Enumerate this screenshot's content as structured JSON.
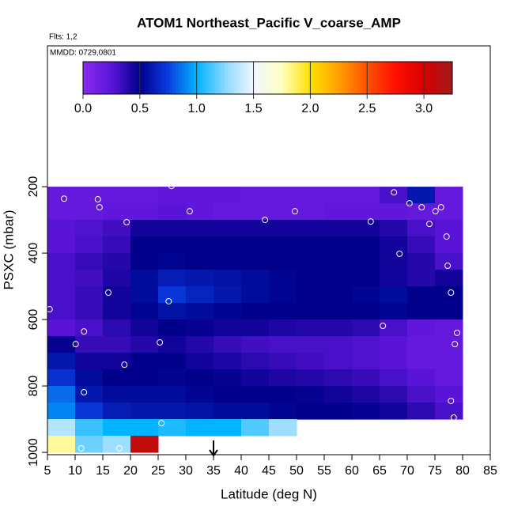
{
  "chart_data": {
    "type": "heatmap",
    "title": "ATOM1 Northeast_Pacific V_coarse_AMP",
    "flights_label": "Flts: 1,2",
    "dates_label": "MMDD: 0729,0801",
    "x_label": "Latitude (deg N)",
    "y_label": "PSXC (mbar)",
    "xlim": [
      5,
      85
    ],
    "xticks": [
      5,
      10,
      15,
      20,
      25,
      30,
      35,
      40,
      45,
      50,
      55,
      60,
      65,
      70,
      75,
      80,
      85
    ],
    "ylim": [
      1007,
      -224
    ],
    "yticks": [
      200,
      400,
      600,
      800,
      1000
    ],
    "lat_edges": [
      5,
      10,
      15,
      20,
      25,
      30,
      35,
      40,
      45,
      50,
      55,
      60,
      65,
      70,
      75,
      80
    ],
    "pressure_edges": [
      200,
      250,
      300,
      350,
      400,
      450,
      500,
      550,
      600,
      650,
      700,
      750,
      800,
      850,
      900,
      950,
      1000
    ],
    "values": [
      [
        0.2,
        0.2,
        0.2,
        0.2,
        0.22,
        0.22,
        0.22,
        0.2,
        0.2,
        0.2,
        0.2,
        0.2,
        0.3,
        0.6,
        0.2
      ],
      [
        0.2,
        0.2,
        0.22,
        0.22,
        0.25,
        0.22,
        0.2,
        0.2,
        0.2,
        0.2,
        0.22,
        0.22,
        0.22,
        0.2,
        0.2
      ],
      [
        0.25,
        0.28,
        0.32,
        0.45,
        0.45,
        0.45,
        0.45,
        0.45,
        0.45,
        0.45,
        0.45,
        0.45,
        0.4,
        0.3,
        0.25
      ],
      [
        0.25,
        0.3,
        0.35,
        0.5,
        0.5,
        0.5,
        0.5,
        0.5,
        0.5,
        0.5,
        0.5,
        0.5,
        0.45,
        0.35,
        0.25
      ],
      [
        0.3,
        0.35,
        0.4,
        0.5,
        0.52,
        0.5,
        0.5,
        0.5,
        0.5,
        0.5,
        0.5,
        0.5,
        0.45,
        0.4,
        0.3
      ],
      [
        0.3,
        0.32,
        0.42,
        0.55,
        0.62,
        0.6,
        0.58,
        0.55,
        0.52,
        0.5,
        0.5,
        0.5,
        0.45,
        0.4,
        0.45
      ],
      [
        0.3,
        0.35,
        0.45,
        0.55,
        0.72,
        0.65,
        0.6,
        0.55,
        0.52,
        0.5,
        0.5,
        0.52,
        0.55,
        0.5,
        0.5
      ],
      [
        0.3,
        0.35,
        0.45,
        0.52,
        0.58,
        0.55,
        0.52,
        0.5,
        0.5,
        0.5,
        0.5,
        0.5,
        0.52,
        0.5,
        0.5
      ],
      [
        0.25,
        0.3,
        0.38,
        0.45,
        0.5,
        0.48,
        0.45,
        0.45,
        0.42,
        0.4,
        0.4,
        0.38,
        0.3,
        0.22,
        0.2
      ],
      [
        0.48,
        0.35,
        0.35,
        0.4,
        0.45,
        0.4,
        0.35,
        0.32,
        0.3,
        0.3,
        0.3,
        0.28,
        0.25,
        0.2,
        0.2
      ],
      [
        0.6,
        0.45,
        0.45,
        0.5,
        0.5,
        0.45,
        0.42,
        0.38,
        0.35,
        0.32,
        0.3,
        0.28,
        0.25,
        0.2,
        0.2
      ],
      [
        0.7,
        0.55,
        0.5,
        0.5,
        0.52,
        0.5,
        0.48,
        0.45,
        0.42,
        0.4,
        0.38,
        0.35,
        0.3,
        0.25,
        0.2
      ],
      [
        0.85,
        0.6,
        0.55,
        0.55,
        0.55,
        0.52,
        0.5,
        0.5,
        0.5,
        0.48,
        0.45,
        0.42,
        0.38,
        0.3,
        0.25
      ],
      [
        0.9,
        0.72,
        0.62,
        0.6,
        0.6,
        0.58,
        0.55,
        0.55,
        0.52,
        0.5,
        0.5,
        0.48,
        0.45,
        0.38,
        0.3
      ],
      [
        1.35,
        1.1,
        1.0,
        1.0,
        1.05,
        1.0,
        1.0,
        1.15,
        1.3,
        null,
        null,
        null,
        null,
        null,
        null
      ],
      [
        1.8,
        1.2,
        1.3,
        3.1,
        null,
        null,
        null,
        null,
        null,
        null,
        null,
        null,
        null,
        null,
        null
      ]
    ],
    "colorbar_lim": [
      0,
      3.25
    ],
    "colorbar_ticks": [
      {
        "value": 0,
        "label": "0.0"
      },
      0.5,
      {
        "value": 1,
        "label": "1.0"
      },
      1.5,
      {
        "value": 2,
        "label": "2.0"
      },
      2.5,
      {
        "value": 3,
        "label": "3.0"
      }
    ],
    "colorscale": [
      [
        0,
        "#8a2cf0"
      ],
      [
        0.25,
        "#5a14d8"
      ],
      [
        0.5,
        "#00008b"
      ],
      [
        0.75,
        "#0a3ce0"
      ],
      [
        1.0,
        "#00b4ff"
      ],
      [
        1.25,
        "#8ad8ff"
      ],
      [
        1.5,
        "#f0f8ff"
      ],
      [
        1.75,
        "#ffffc0"
      ],
      [
        2.0,
        "#ffe000"
      ],
      [
        2.25,
        "#ffa000"
      ],
      [
        2.5,
        "#ff5000"
      ],
      [
        2.75,
        "#ff1000"
      ],
      [
        3.0,
        "#d80000"
      ],
      [
        3.25,
        "#a01c1c"
      ]
    ],
    "points": {
      "lat": [
        8,
        14.1,
        14.4,
        19.3,
        27.4,
        30.7,
        44.3,
        49.7,
        63.4,
        67.6,
        70.4,
        72.6,
        75.1,
        76.1,
        74,
        77.1,
        68.6,
        77.3,
        77.9,
        16,
        26.9,
        5.4,
        11.6,
        10.1,
        25.3,
        65.6,
        79,
        78.6,
        18.9,
        11.6,
        77.9,
        78.4,
        25.6,
        11.1,
        18
      ],
      "pressure": [
        236,
        238,
        262,
        307,
        198,
        274,
        300,
        274,
        305,
        217,
        250,
        262,
        274,
        262,
        312,
        350,
        402,
        438,
        519,
        519,
        545,
        569,
        636,
        674,
        669,
        619,
        640,
        674,
        736,
        819,
        845,
        895,
        912,
        988,
        988
      ]
    },
    "marker_lat": 35
  }
}
